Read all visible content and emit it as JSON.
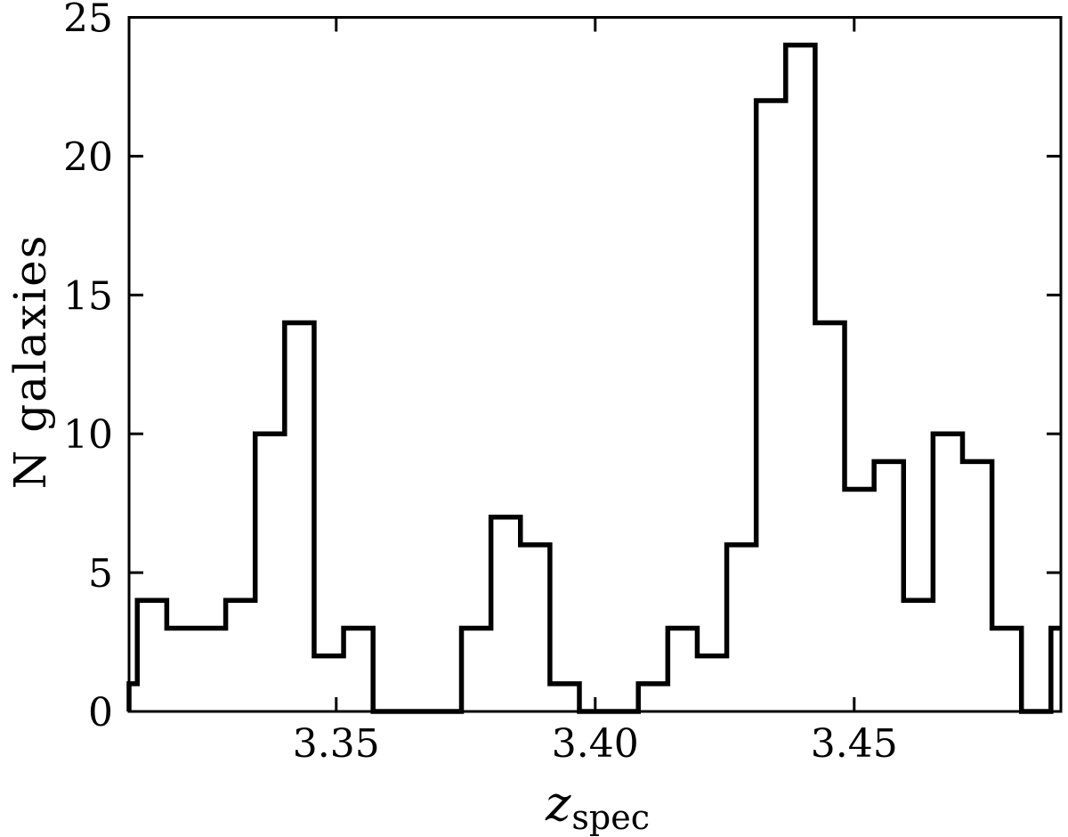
{
  "figure": {
    "background_color": "#ffffff",
    "axes_color": "#000000",
    "ylabel": "N galaxies",
    "xlabel": {
      "main": "z",
      "subscript": "spec"
    }
  },
  "chart_data": {
    "type": "histogram",
    "histtype": "step",
    "title": "",
    "xlabel": "z_spec",
    "ylabel": "N galaxies",
    "line_color": "#000000",
    "grid": false,
    "legend": false,
    "xlim": [
      3.31,
      3.4899
    ],
    "ylim": [
      0,
      25
    ],
    "x_ticks": [
      {
        "value": 3.35,
        "label": "3.35"
      },
      {
        "value": 3.4,
        "label": "3.40"
      },
      {
        "value": 3.45,
        "label": "3.45"
      }
    ],
    "y_ticks": [
      {
        "value": 0,
        "label": "0"
      },
      {
        "value": 5,
        "label": "5"
      },
      {
        "value": 10,
        "label": "10"
      },
      {
        "value": 15,
        "label": "15"
      },
      {
        "value": 20,
        "label": "20"
      },
      {
        "value": 25,
        "label": "25"
      }
    ],
    "bins": {
      "start": 3.3059,
      "width": 0.00569
    },
    "counts": [
      1,
      4,
      3,
      3,
      4,
      10,
      14,
      2,
      3,
      0,
      0,
      0,
      3,
      7,
      6,
      1,
      0,
      0,
      1,
      3,
      2,
      6,
      22,
      24,
      14,
      8,
      9,
      4,
      10,
      9,
      3,
      0,
      3
    ]
  }
}
